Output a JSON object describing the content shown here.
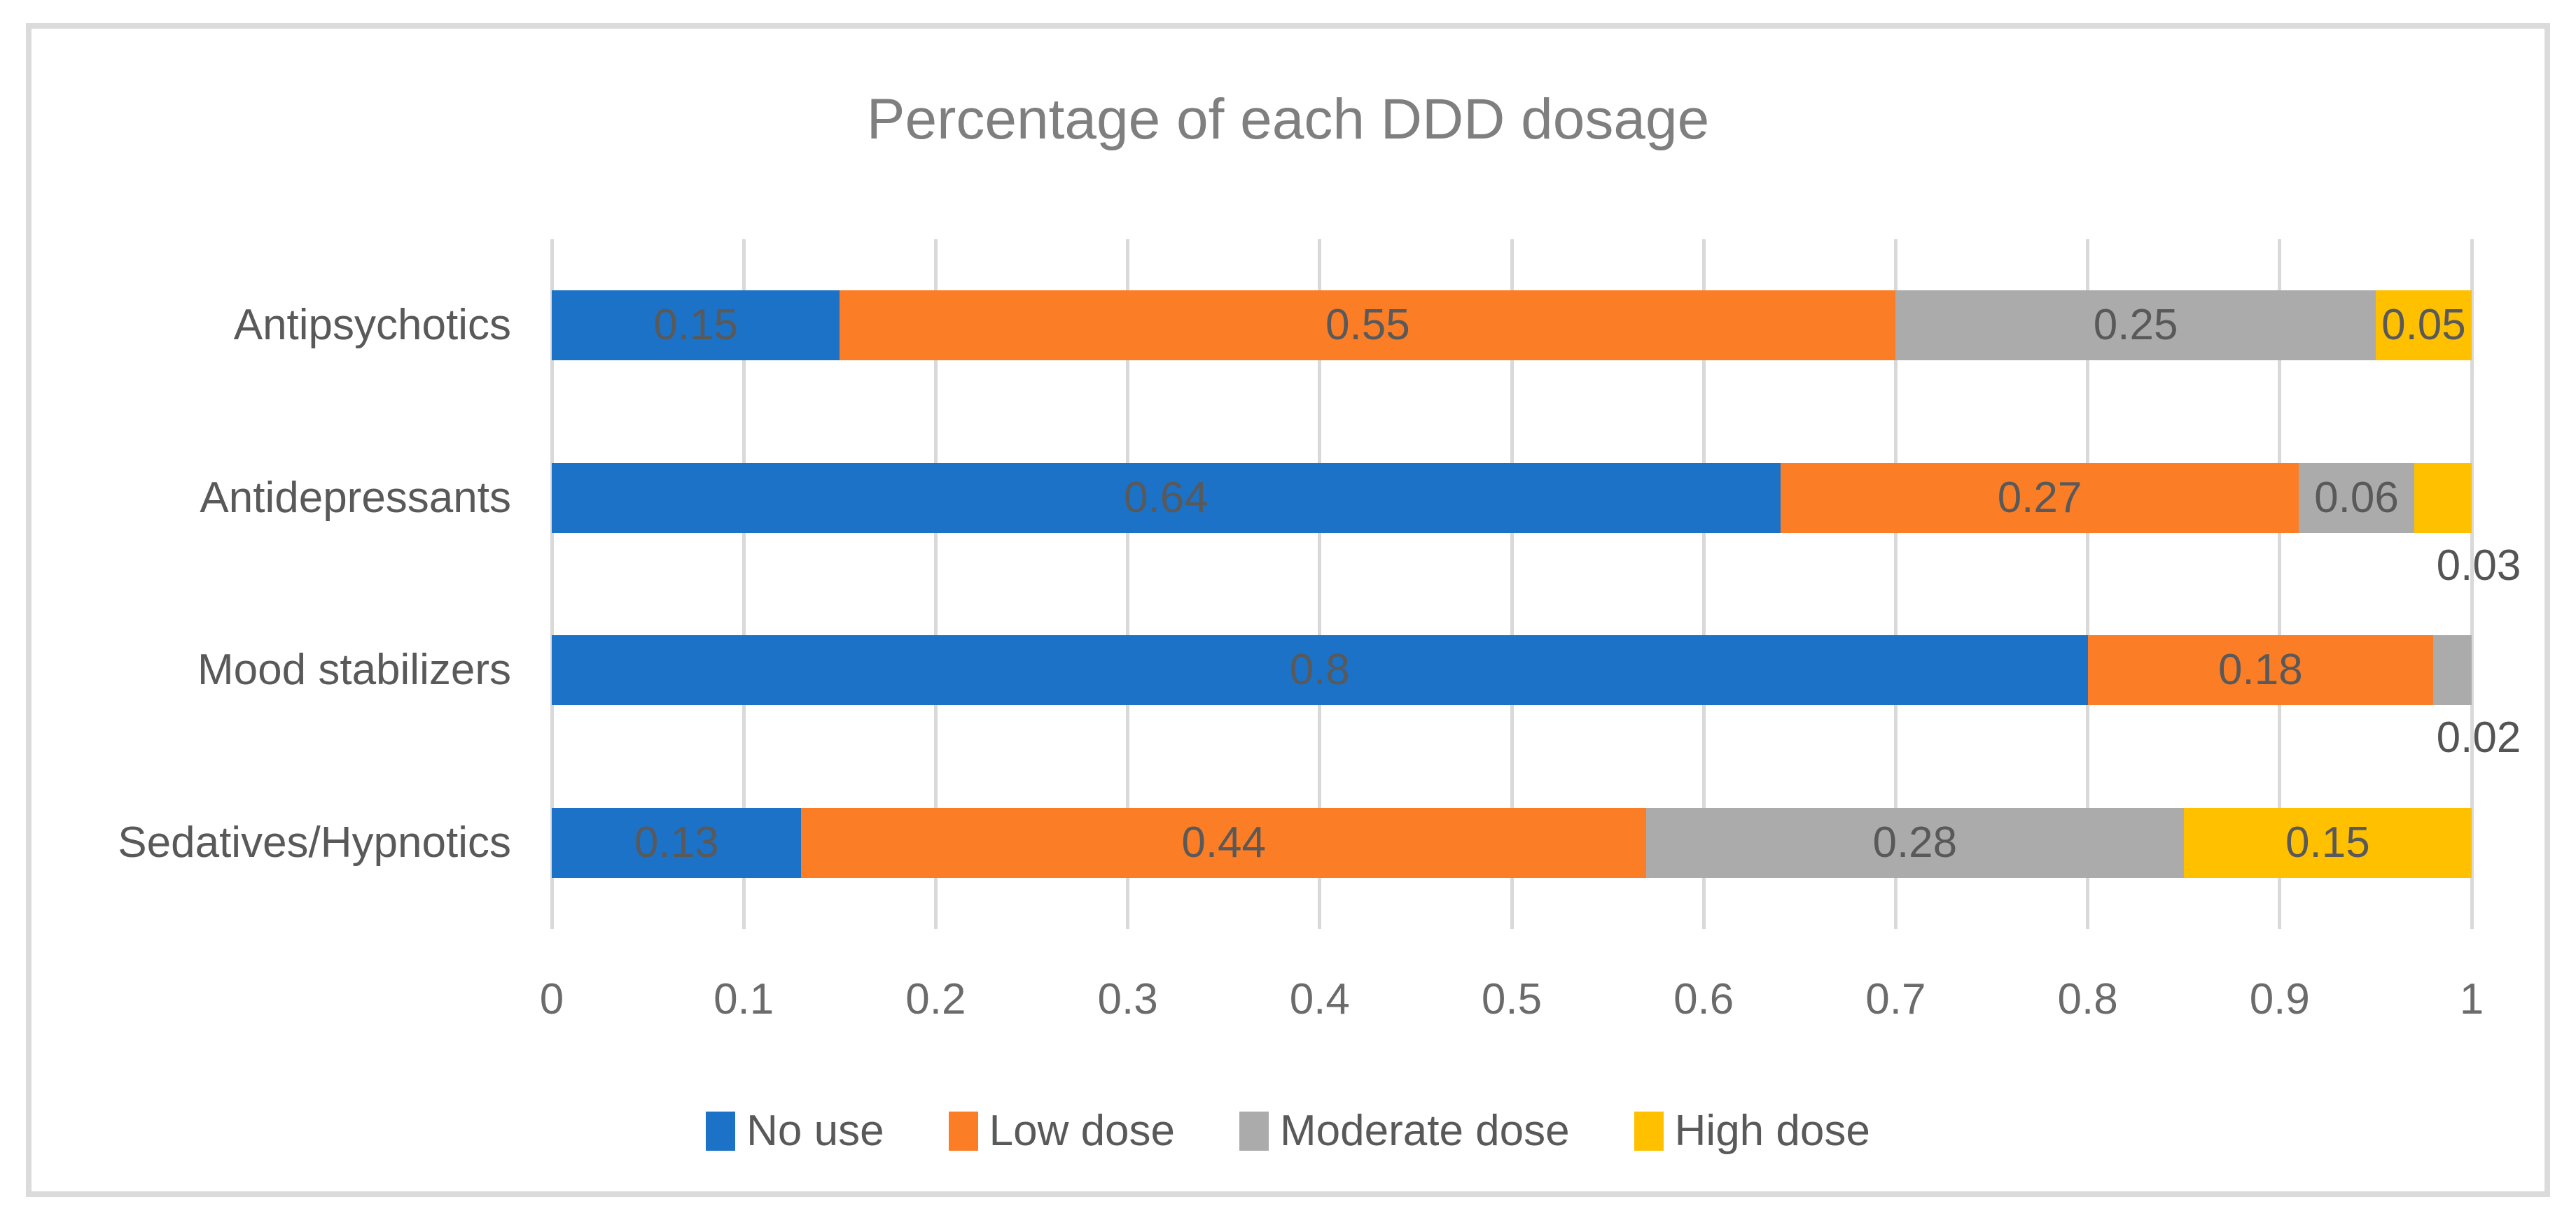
{
  "figure": {
    "title": "Percentage of each DDD dosage",
    "frame_border_color": "#DBDBDB",
    "background_color": "#FFFFFF"
  },
  "colors": {
    "no_use_blue": "#1C72C6",
    "low_dose_orange": "#FB7D26",
    "moderate_dose_gray": "#ABABAB",
    "high_dose_yellow": "#FFC000",
    "gridline": "#D9D9D9",
    "title_text": "#7F7F7F",
    "label_text": "#595959",
    "tick_text": "#6B6B6B"
  },
  "chart_data": {
    "type": "bar",
    "orientation": "horizontal",
    "stacked": true,
    "title": "Percentage of each DDD dosage",
    "xlabel": "",
    "ylabel": "",
    "xlim": [
      0,
      1
    ],
    "x_ticks": [
      "0",
      "0.1",
      "0.2",
      "0.3",
      "0.4",
      "0.5",
      "0.6",
      "0.7",
      "0.8",
      "0.9",
      "1"
    ],
    "grid": "vertical-major",
    "legend_position": "bottom",
    "categories": [
      "Antipsychotics",
      "Antidepressants",
      "Mood stabilizers",
      "Sedatives/Hypnotics"
    ],
    "series": [
      {
        "name": "No use",
        "color": "#1C72C6",
        "values": [
          0.15,
          0.64,
          0.8,
          0.13
        ],
        "labels": [
          "0.15",
          "0.64",
          "0.8",
          "0.13"
        ],
        "label_outside": [
          false,
          false,
          false,
          false
        ]
      },
      {
        "name": "Low dose",
        "color": "#FB7D26",
        "values": [
          0.55,
          0.27,
          0.18,
          0.44
        ],
        "labels": [
          "0.55",
          "0.27",
          "0.18",
          "0.44"
        ],
        "label_outside": [
          false,
          false,
          false,
          false
        ]
      },
      {
        "name": "Moderate dose",
        "color": "#ABABAB",
        "values": [
          0.25,
          0.06,
          0.02,
          0.28
        ],
        "labels": [
          "0.25",
          "0.06",
          "0.02",
          "0.28"
        ],
        "label_outside": [
          false,
          false,
          true,
          false
        ]
      },
      {
        "name": "High dose",
        "color": "#FFC000",
        "values": [
          0.05,
          0.03,
          0,
          0.15
        ],
        "labels": [
          "0.05",
          "0.03",
          "",
          "0.15"
        ],
        "label_outside": [
          false,
          true,
          false,
          false
        ]
      }
    ]
  }
}
